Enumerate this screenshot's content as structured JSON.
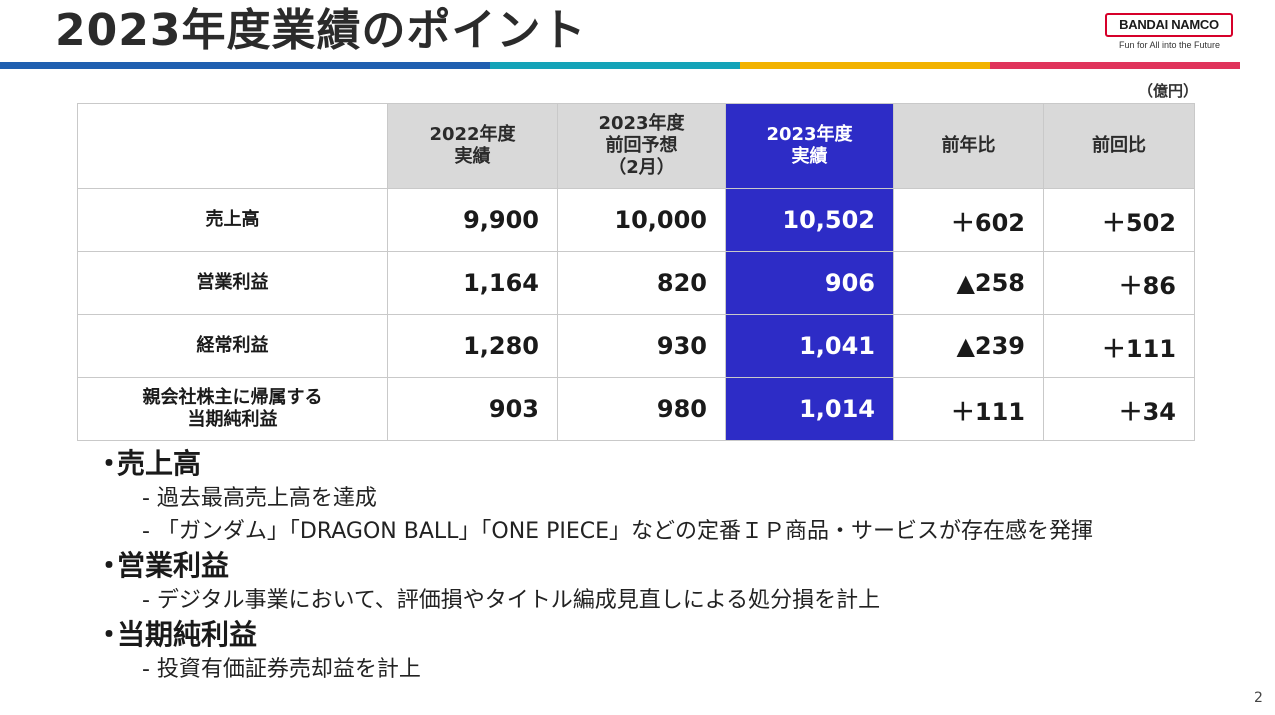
{
  "title": "2023年度業績のポイント",
  "logo": {
    "name": "BANDAI NAMCO",
    "tagline": "Fun for All into the Future"
  },
  "stripe_colors": [
    "#1f5fb0",
    "#14a3b8",
    "#f2b200",
    "#e0335b"
  ],
  "unit": "（億円）",
  "table": {
    "headers": [
      "",
      "2022年度\n実績",
      "2023年度\n前回予想\n（2月）",
      "2023年度\n実績",
      "前年比",
      "前回比"
    ],
    "highlight_color": "#2d2cc6",
    "rows": [
      {
        "label": "売上高",
        "values": [
          "9,900",
          "10,000",
          "10,502",
          "＋602",
          "＋502"
        ]
      },
      {
        "label": "営業利益",
        "values": [
          "1,164",
          "820",
          "906",
          "▲258",
          "＋86"
        ]
      },
      {
        "label": "経常利益",
        "values": [
          "1,280",
          "930",
          "1,041",
          "▲239",
          "＋111"
        ]
      },
      {
        "label": "親会社株主に帰属する\n当期純利益",
        "values": [
          "903",
          "980",
          "1,014",
          "＋111",
          "＋34"
        ]
      }
    ]
  },
  "bullets": [
    {
      "heading": "売上高",
      "items": [
        "- 過去最高売上高を達成",
        "- 「ガンダム」「DRAGON BALL」「ONE PIECE」などの定番ＩＰ商品・サービスが存在感を発揮"
      ]
    },
    {
      "heading": "営業利益",
      "items": [
        "- デジタル事業において、評価損やタイトル編成見直しによる処分損を計上"
      ]
    },
    {
      "heading": "当期純利益",
      "items": [
        "- 投資有価証券売却益を計上"
      ]
    }
  ],
  "page_number": "2"
}
